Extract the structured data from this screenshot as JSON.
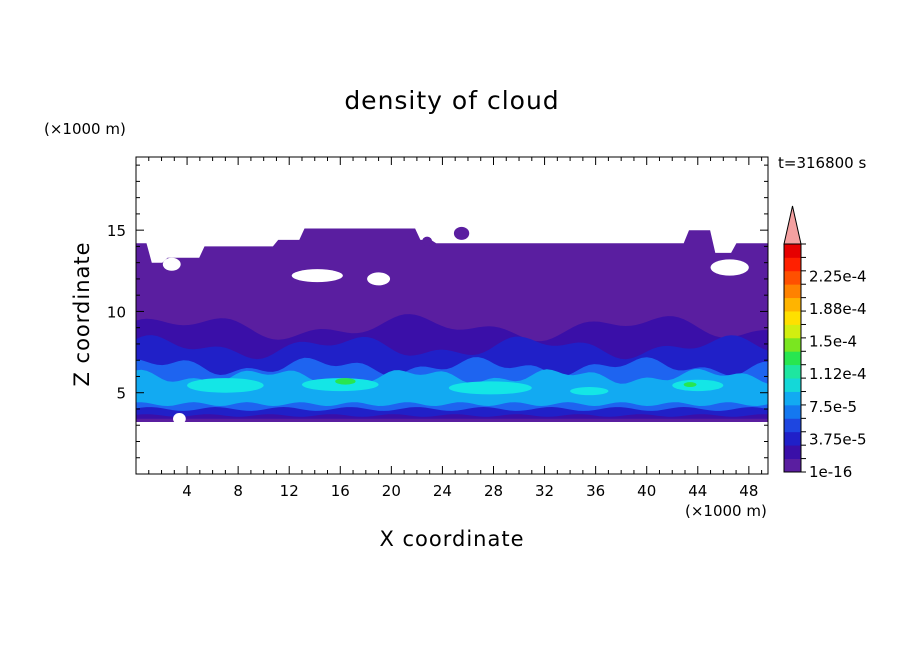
{
  "chart_data": {
    "type": "contour",
    "title": "density of cloud",
    "xlabel": "X coordinate",
    "ylabel": "Z coordinate",
    "x_unit": "(×1000 m)",
    "y_unit": "(×1000 m)",
    "time_label": "t=316800 s",
    "xlim": [
      0,
      49.5
    ],
    "ylim": [
      0,
      19.5
    ],
    "x_ticks": [
      4,
      8,
      12,
      16,
      20,
      24,
      28,
      32,
      36,
      40,
      44,
      48
    ],
    "y_ticks": [
      5,
      10,
      15
    ],
    "colorbar": {
      "levels": [
        "1e-16",
        "3.75e-5",
        "7.5e-5",
        "1.12e-4",
        "1.5e-4",
        "1.88e-4",
        "2.25e-4"
      ],
      "colors": [
        "#5a1ea0",
        "#3a0fa8",
        "#2020c8",
        "#1e46e0",
        "#1478f0",
        "#12aaf2",
        "#14d8d8",
        "#1ee6a0",
        "#28e650",
        "#7ae620",
        "#d2ee10",
        "#ffe000",
        "#ffb400",
        "#ff8200",
        "#ff5000",
        "#ff2000",
        "#e60000"
      ],
      "extend_color": "#f4a0a0"
    },
    "layers": [
      {
        "z_range": [
          3.2,
          14.2
        ],
        "level": "1e-16"
      },
      {
        "z_range": [
          3.4,
          9.2
        ],
        "level": "low (~1.5e-5)"
      },
      {
        "z_range": [
          3.6,
          8.0
        ],
        "level": "~2.5e-5"
      },
      {
        "z_range": [
          4.0,
          6.7
        ],
        "level": "~5e-5"
      },
      {
        "z_range": [
          4.3,
          6.0
        ],
        "level": "~7.5e-5"
      },
      {
        "z_range": [
          4.6,
          5.7
        ],
        "level": "~1.0e-4"
      },
      {
        "z_range": [
          5.0,
          5.7
        ],
        "level": "~1.12e-4 (local max)"
      }
    ],
    "colors": {
      "base": "#5a1ea0",
      "dark_blue": "#3a0fa8",
      "blue": "#2020c8",
      "mid_blue": "#1e64f0",
      "light_blue": "#12aaf2",
      "cyan": "#14e6e6",
      "green": "#28e650"
    }
  }
}
